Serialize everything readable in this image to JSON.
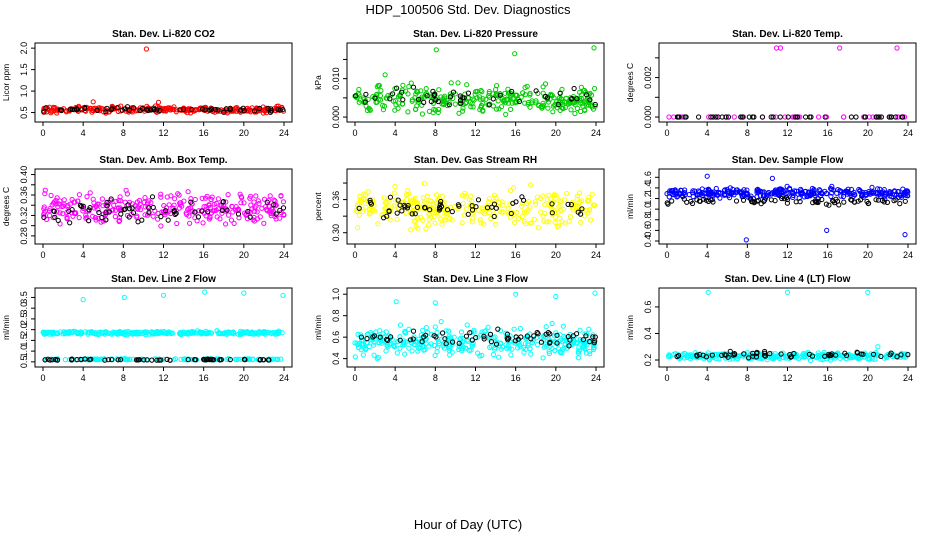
{
  "figure": {
    "title": "HDP_100506  Std. Dev. Diagnostics",
    "xlabel": "Hour of Day (UTC)"
  },
  "chart_data": [
    {
      "type": "scatter",
      "title": "Stan. Dev. Li-820 CO2",
      "ylabel": "Licor ppm",
      "xlim": [
        0,
        24
      ],
      "ylim": [
        0.35,
        2.05
      ],
      "xticks": [
        0,
        4,
        8,
        12,
        16,
        20,
        24
      ],
      "yticks": [
        0.5,
        1.0,
        1.5,
        2.0
      ],
      "ytick_labels": [
        "0.5",
        "1.0",
        "1.5",
        "2.0"
      ],
      "series": [
        {
          "color": "#ff0000",
          "base": 0.57,
          "spread": 0.07,
          "n": 260,
          "outliers": [
            [
              10.3,
              1.98
            ],
            [
              5.0,
              0.75
            ],
            [
              11.5,
              0.74
            ]
          ]
        },
        {
          "color": "#000000",
          "base": 0.57,
          "spread": 0.05,
          "n": 60,
          "outliers": []
        }
      ]
    },
    {
      "type": "scatter",
      "title": "Stan. Dev. Li-820 Pressure",
      "ylabel": "kPa",
      "xlim": [
        0,
        24
      ],
      "ylim": [
        -0.0005,
        0.0185
      ],
      "xticks": [
        0,
        4,
        8,
        12,
        16,
        20,
        24
      ],
      "yticks": [
        0.0,
        0.005,
        0.01,
        0.015
      ],
      "ytick_labels": [
        "0.000",
        "",
        "0.010",
        ""
      ],
      "series": [
        {
          "color": "#00cc00",
          "base": 0.0045,
          "spread": 0.0035,
          "n": 320,
          "outliers": [
            [
              8.1,
              0.0175
            ],
            [
              23.8,
              0.018
            ],
            [
              15.9,
              0.0165
            ],
            [
              3.0,
              0.011
            ]
          ]
        },
        {
          "color": "#000000",
          "base": 0.005,
          "spread": 0.0025,
          "n": 45,
          "outliers": []
        }
      ]
    },
    {
      "type": "scatter",
      "title": "Stan. Dev. Li-820 Temp.",
      "ylabel": "degrees C",
      "xlim": [
        0,
        24
      ],
      "ylim": [
        -0.0001,
        0.0036
      ],
      "xticks": [
        0,
        4,
        8,
        12,
        16,
        20,
        24
      ],
      "yticks": [
        0.0,
        0.001,
        0.002,
        0.003
      ],
      "ytick_labels": [
        "0.000",
        "",
        "0.002",
        ""
      ],
      "series": [
        {
          "color": "#ff00ff",
          "base": 0.0,
          "spread": 0.0,
          "n": 30,
          "outliers": [
            [
              10.9,
              0.0035
            ],
            [
              11.3,
              0.0035
            ],
            [
              17.2,
              0.0035
            ],
            [
              22.9,
              0.0035
            ],
            [
              0.2,
              0.0
            ],
            [
              20.5,
              0.0
            ]
          ]
        },
        {
          "color": "#000000",
          "base": 0.0,
          "spread": 0.0,
          "n": 45,
          "outliers": []
        }
      ]
    },
    {
      "type": "scatter",
      "title": "Stan. Dev. Amb. Box Temp.",
      "ylabel": "degrees C",
      "xlim": [
        0,
        24
      ],
      "ylim": [
        0.27,
        0.405
      ],
      "xticks": [
        0,
        4,
        8,
        12,
        16,
        20,
        24
      ],
      "yticks": [
        0.28,
        0.3,
        0.32,
        0.34,
        0.36,
        0.38,
        0.4
      ],
      "ytick_labels": [
        "0.28",
        "",
        "0.32",
        "",
        "0.36",
        "",
        "0.40"
      ],
      "series": [
        {
          "color": "#ff00ff",
          "base": 0.335,
          "spread": 0.03,
          "n": 300,
          "outliers": []
        },
        {
          "color": "#000000",
          "base": 0.33,
          "spread": 0.025,
          "n": 60,
          "outliers": []
        }
      ]
    },
    {
      "type": "scatter",
      "title": "Stan. Dev. Gas Stream RH",
      "ylabel": "percent",
      "xlim": [
        0,
        24
      ],
      "ylim": [
        0.285,
        0.41
      ],
      "xticks": [
        0,
        4,
        8,
        12,
        16,
        20,
        24
      ],
      "yticks": [
        0.3,
        0.33,
        0.36,
        0.39
      ],
      "ytick_labels": [
        "0.30",
        "",
        "0.36",
        ""
      ],
      "series": [
        {
          "color": "#ffff00",
          "base": 0.345,
          "spread": 0.03,
          "n": 300,
          "outliers": []
        },
        {
          "color": "#000000",
          "base": 0.345,
          "spread": 0.02,
          "n": 55,
          "outliers": []
        }
      ]
    },
    {
      "type": "scatter",
      "title": "Stan. Dev. Sample Flow",
      "ylabel": "ml/min",
      "xlim": [
        0,
        24
      ],
      "ylim": [
        0.4,
        1.7
      ],
      "xticks": [
        0,
        4,
        8,
        12,
        16,
        20,
        24
      ],
      "yticks": [
        0.4,
        0.6,
        0.8,
        1.0,
        1.2,
        1.4,
        1.6
      ],
      "ytick_labels": [
        "0.4",
        "0.6",
        "0.8",
        "1.0",
        "1.2",
        "1.4",
        "1.6"
      ],
      "series": [
        {
          "color": "#0000ff",
          "base": 1.3,
          "spread": 0.09,
          "n": 320,
          "outliers": [
            [
              7.9,
              0.42
            ],
            [
              23.7,
              0.52
            ],
            [
              15.9,
              0.6
            ],
            [
              4.0,
              1.62
            ],
            [
              10.5,
              1.58
            ]
          ]
        },
        {
          "color": "#000000",
          "base": 1.15,
          "spread": 0.06,
          "n": 70,
          "outliers": []
        }
      ]
    },
    {
      "type": "scatter",
      "title": "Stan. Dev. Line 2 Flow",
      "ylabel": "ml/min",
      "xlim": [
        0,
        24
      ],
      "ylim": [
        0.4,
        3.8
      ],
      "xticks": [
        0,
        4,
        8,
        12,
        16,
        20,
        24
      ],
      "yticks": [
        0.5,
        1.0,
        1.5,
        2.0,
        2.5,
        3.0,
        3.5
      ],
      "ytick_labels": [
        "0.5",
        "1.0",
        "1.5",
        "2.0",
        "2.5",
        "3.0",
        "3.5"
      ],
      "series": [
        {
          "color": "#00ffff",
          "base": 1.85,
          "spread": 0.07,
          "n": 300,
          "outliers": [
            [
              4.0,
              3.4
            ],
            [
              8.1,
              3.5
            ],
            [
              12.0,
              3.6
            ],
            [
              16.1,
              3.75
            ],
            [
              20.0,
              3.7
            ],
            [
              23.9,
              3.6
            ]
          ]
        },
        {
          "color": "#00ffff",
          "base": 0.62,
          "spread": 0.03,
          "n": 120,
          "outliers": []
        },
        {
          "color": "#000000",
          "base": 0.6,
          "spread": 0.03,
          "n": 60,
          "outliers": []
        }
      ]
    },
    {
      "type": "scatter",
      "title": "Stan. Dev. Line 3 Flow",
      "ylabel": "ml/min",
      "xlim": [
        0,
        24
      ],
      "ylim": [
        0.35,
        1.03
      ],
      "xticks": [
        0,
        4,
        8,
        12,
        16,
        20,
        24
      ],
      "yticks": [
        0.4,
        0.6,
        0.8,
        1.0
      ],
      "ytick_labels": [
        "0.4",
        "0.6",
        "0.8",
        "1.0"
      ],
      "series": [
        {
          "color": "#00ffff",
          "base": 0.55,
          "spread": 0.13,
          "n": 340,
          "outliers": [
            [
              4.1,
              0.93
            ],
            [
              8.0,
              0.92
            ],
            [
              16.0,
              1.0
            ],
            [
              20.0,
              0.98
            ],
            [
              23.9,
              1.01
            ]
          ]
        },
        {
          "color": "#000000",
          "base": 0.6,
          "spread": 0.07,
          "n": 65,
          "outliers": []
        }
      ]
    },
    {
      "type": "scatter",
      "title": "Stan. Dev. Line 4 (LT) Flow",
      "ylabel": "ml/min",
      "xlim": [
        0,
        24
      ],
      "ylim": [
        0.17,
        0.72
      ],
      "xticks": [
        0,
        4,
        8,
        12,
        16,
        20,
        24
      ],
      "yticks": [
        0.2,
        0.4,
        0.6
      ],
      "ytick_labels": [
        "0.2",
        "0.4",
        "0.6"
      ],
      "series": [
        {
          "color": "#00ffff",
          "base": 0.23,
          "spread": 0.025,
          "n": 280,
          "outliers": [
            [
              4.1,
              0.71
            ],
            [
              12.0,
              0.71
            ],
            [
              20.0,
              0.71
            ],
            [
              21.0,
              0.3
            ]
          ]
        },
        {
          "color": "#000000",
          "base": 0.24,
          "spread": 0.02,
          "n": 55,
          "outliers": []
        }
      ]
    }
  ]
}
